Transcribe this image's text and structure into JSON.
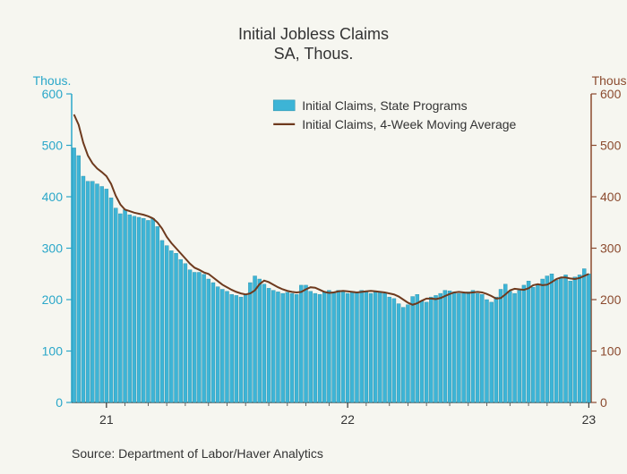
{
  "chart": {
    "type": "bar+line",
    "title_line1": "Initial Jobless Claims",
    "title_line2": "SA, Thous.",
    "title_fontsize": 18,
    "title_color": "#333333",
    "y_axis_left_label": "Thous.",
    "y_axis_right_label": "Thous.",
    "y_axis_left_color": "#2aa7c9",
    "y_axis_right_color": "#8b4a2e",
    "label_fontsize": 14,
    "ylim": [
      0,
      600
    ],
    "ytick_step": 100,
    "yticks": [
      "0",
      "100",
      "200",
      "300",
      "400",
      "500",
      "600"
    ],
    "x_tick_labels": [
      "21",
      "22",
      "23"
    ],
    "x_tick_positions": [
      7,
      59,
      111
    ],
    "bar_color": "#3db4d6",
    "bar_border_color": "#2a8fa8",
    "line_color": "#6e3a1e",
    "line_width": 2,
    "axis_left_color": "#2aa7c9",
    "axis_right_color": "#8b4a2e",
    "grid_color": "#444444",
    "tick_color_left": "#2aa7c9",
    "tick_color_right": "#8b4a2e",
    "background_color": "#f6f6f0",
    "legend": {
      "x": 0.44,
      "y_top": 0.13,
      "items": [
        {
          "label": "Initial Claims, State Programs",
          "type": "bar",
          "color": "#3db4d6"
        },
        {
          "label": "Initial Claims, 4-Week Moving Average",
          "type": "line",
          "color": "#6e3a1e"
        }
      ],
      "fontsize": 14,
      "text_color": "#333333"
    },
    "source_text": "Source:  Department of Labor/Haver Analytics",
    "source_fontsize": 14,
    "source_color": "#333333",
    "n_bars": 112,
    "bar_values": [
      495,
      480,
      440,
      430,
      430,
      425,
      420,
      415,
      398,
      378,
      367,
      375,
      365,
      362,
      360,
      358,
      354,
      358,
      342,
      315,
      305,
      295,
      290,
      278,
      270,
      258,
      253,
      253,
      249,
      240,
      233,
      225,
      220,
      216,
      210,
      208,
      205,
      210,
      233,
      246,
      240,
      230,
      222,
      218,
      215,
      212,
      214,
      212,
      210,
      228,
      228,
      216,
      212,
      210,
      215,
      218,
      215,
      218,
      215,
      212,
      216,
      214,
      218,
      216,
      212,
      215,
      215,
      212,
      205,
      202,
      192,
      185,
      190,
      206,
      210,
      198,
      195,
      205,
      208,
      212,
      218,
      217,
      215,
      212,
      212,
      215,
      218,
      212,
      210,
      200,
      195,
      205,
      220,
      230,
      216,
      212,
      218,
      228,
      236,
      224,
      228,
      240,
      246,
      250,
      238,
      242,
      248,
      236,
      244,
      248,
      260,
      250
    ],
    "line_values": [
      560,
      540,
      505,
      480,
      465,
      455,
      448,
      440,
      425,
      402,
      385,
      375,
      372,
      369,
      367,
      365,
      362,
      358,
      350,
      338,
      322,
      310,
      300,
      290,
      280,
      270,
      262,
      258,
      253,
      250,
      243,
      236,
      229,
      224,
      219,
      215,
      212,
      210,
      212,
      218,
      230,
      237,
      234,
      229,
      224,
      220,
      217,
      215,
      214,
      215,
      220,
      224,
      223,
      219,
      215,
      213,
      214,
      216,
      217,
      216,
      215,
      214,
      215,
      216,
      217,
      216,
      215,
      214,
      212,
      210,
      206,
      200,
      194,
      190,
      193,
      198,
      202,
      202,
      201,
      203,
      207,
      211,
      214,
      215,
      214,
      213,
      214,
      215,
      214,
      211,
      207,
      202,
      203,
      210,
      218,
      221,
      220,
      219,
      222,
      228,
      230,
      228,
      229,
      234,
      240,
      243,
      243,
      241,
      240,
      242,
      246,
      250
    ]
  }
}
